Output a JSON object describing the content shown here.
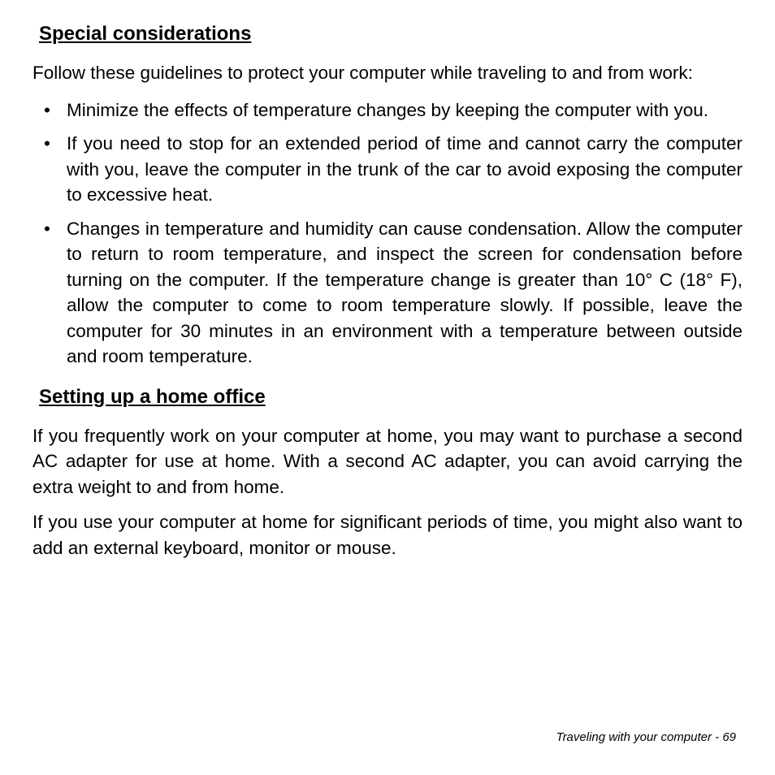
{
  "section1": {
    "heading": "Special considerations",
    "intro": "Follow these guidelines to protect your computer while traveling to and from work:",
    "bullets": [
      "Minimize the effects of temperature changes by keeping the computer with you.",
      "If you need to stop for an extended period of time and cannot carry the computer with you, leave the computer in the trunk of the car to avoid exposing the computer to excessive heat.",
      "Changes in temperature and humidity can cause condensation. Allow the computer to return to room temperature, and inspect the screen for condensation before turning on the computer. If the temperature change is greater than 10° C (18° F), allow the computer to come to room temperature slowly. If possible, leave the computer for 30 minutes in an environment with a temperature between outside and room temperature."
    ]
  },
  "section2": {
    "heading": "Setting up a home office",
    "paragraphs": [
      "If you frequently work on your computer at home, you may want to purchase a second AC adapter for use at home. With a second AC adapter, you can avoid carrying the extra weight to and from home.",
      "If you use your computer at home for significant periods of time, you might also want to add an external keyboard, monitor or mouse."
    ]
  },
  "footer": {
    "text": "Traveling with your computer -  ",
    "page": "69"
  },
  "style": {
    "background_color": "#ffffff",
    "text_color": "#000000",
    "heading_fontsize": 24,
    "body_fontsize": 22.5,
    "footer_fontsize": 15,
    "font_family": "Arial"
  }
}
